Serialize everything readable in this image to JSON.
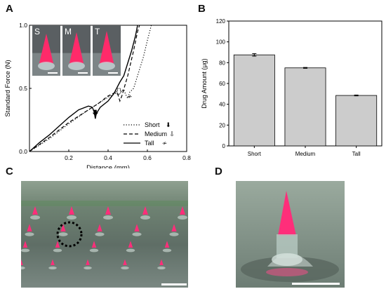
{
  "panels": {
    "a": {
      "letter": "A"
    },
    "b": {
      "letter": "B"
    },
    "c": {
      "letter": "C"
    },
    "d": {
      "letter": "D"
    }
  },
  "chart_data": [
    {
      "type": "line",
      "panel": "A",
      "xlabel": "Distance (mm)",
      "ylabel": "Standard Force (N)",
      "xlim": [
        0,
        0.8
      ],
      "ylim": [
        0,
        1.0
      ],
      "xticks": [
        "0.2",
        "0.4",
        "0.6",
        "0.8"
      ],
      "yticks": [
        "0.0",
        "0.5",
        "1.0"
      ],
      "legend_position": "bottom-right",
      "inset_labels": [
        "S",
        "M",
        "T"
      ],
      "series": [
        {
          "name": "Short",
          "style": "dotted",
          "legend_symbol": "down-arrow-filled",
          "points": [
            [
              0,
              0
            ],
            [
              0.1,
              0.1
            ],
            [
              0.2,
              0.22
            ],
            [
              0.3,
              0.33
            ],
            [
              0.35,
              0.38
            ],
            [
              0.4,
              0.43
            ],
            [
              0.45,
              0.47
            ],
            [
              0.48,
              0.49
            ],
            [
              0.49,
              0.45
            ],
            [
              0.5,
              0.42
            ],
            [
              0.51,
              0.47
            ],
            [
              0.53,
              0.5
            ],
            [
              0.55,
              0.6
            ],
            [
              0.58,
              0.75
            ],
            [
              0.6,
              0.88
            ],
            [
              0.62,
              1.0
            ]
          ]
        },
        {
          "name": "Medium",
          "style": "dashed",
          "legend_symbol": "down-arrow-outline",
          "points": [
            [
              0,
              0
            ],
            [
              0.1,
              0.11
            ],
            [
              0.2,
              0.23
            ],
            [
              0.3,
              0.33
            ],
            [
              0.35,
              0.38
            ],
            [
              0.4,
              0.44
            ],
            [
              0.44,
              0.47
            ],
            [
              0.45,
              0.45
            ],
            [
              0.46,
              0.4
            ],
            [
              0.47,
              0.44
            ],
            [
              0.5,
              0.6
            ],
            [
              0.53,
              0.8
            ],
            [
              0.55,
              0.95
            ],
            [
              0.56,
              1.0
            ]
          ]
        },
        {
          "name": "Tall",
          "style": "solid",
          "legend_symbol": "double-slash",
          "points": [
            [
              0,
              0
            ],
            [
              0.05,
              0.07
            ],
            [
              0.1,
              0.13
            ],
            [
              0.15,
              0.2
            ],
            [
              0.2,
              0.27
            ],
            [
              0.25,
              0.33
            ],
            [
              0.3,
              0.36
            ],
            [
              0.32,
              0.35
            ],
            [
              0.33,
              0.31
            ],
            [
              0.335,
              0.26
            ],
            [
              0.34,
              0.3
            ],
            [
              0.36,
              0.35
            ],
            [
              0.4,
              0.4
            ],
            [
              0.43,
              0.46
            ],
            [
              0.46,
              0.55
            ],
            [
              0.48,
              0.6
            ],
            [
              0.5,
              0.7
            ],
            [
              0.52,
              0.8
            ],
            [
              0.54,
              0.92
            ],
            [
              0.55,
              1.0
            ]
          ]
        }
      ]
    },
    {
      "type": "bar",
      "panel": "B",
      "categories": [
        "Short",
        "Medium",
        "Tall"
      ],
      "values": [
        87.5,
        75,
        48.5
      ],
      "errors": [
        1.2,
        0.4,
        0.4
      ],
      "ylabel": "Drug Amount (μg)",
      "xlabel": "",
      "ylim": [
        0,
        120
      ],
      "yticks": [
        "0",
        "20",
        "40",
        "60",
        "80",
        "100",
        "120"
      ],
      "bar_color": "#cccccc"
    }
  ]
}
